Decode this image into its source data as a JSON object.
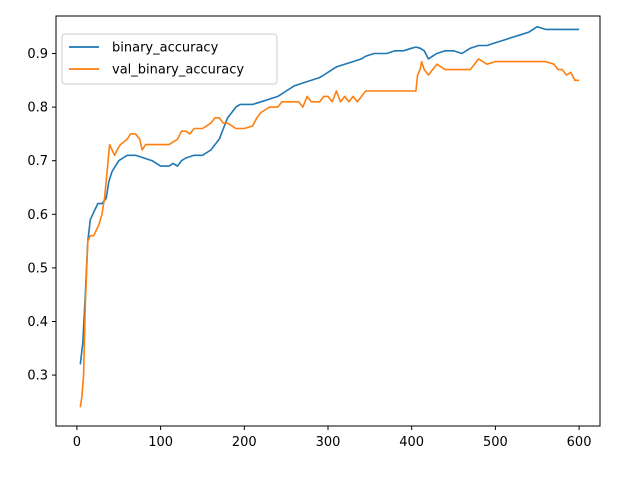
{
  "chart_data": {
    "type": "line",
    "title": "",
    "xlabel": "",
    "ylabel": "",
    "xlim": [
      -25,
      625
    ],
    "ylim": [
      0.205,
      0.97
    ],
    "xticks": [
      0,
      100,
      200,
      300,
      400,
      500,
      600
    ],
    "yticks": [
      0.3,
      0.4,
      0.5,
      0.6,
      0.7,
      0.8,
      0.9
    ],
    "xtick_labels": [
      "0",
      "100",
      "200",
      "300",
      "400",
      "500",
      "600"
    ],
    "ytick_labels": [
      "0.3",
      "0.4",
      "0.5",
      "0.6",
      "0.7",
      "0.8",
      "0.9"
    ],
    "grid": false,
    "legend_position": "top-left",
    "series": [
      {
        "name": "binary_accuracy",
        "color": "#1f77b4",
        "points": [
          [
            4,
            0.32
          ],
          [
            7,
            0.36
          ],
          [
            10,
            0.45
          ],
          [
            13,
            0.55
          ],
          [
            16,
            0.59
          ],
          [
            19,
            0.6
          ],
          [
            22,
            0.61
          ],
          [
            25,
            0.62
          ],
          [
            30,
            0.62
          ],
          [
            35,
            0.63
          ],
          [
            38,
            0.66
          ],
          [
            42,
            0.68
          ],
          [
            46,
            0.69
          ],
          [
            50,
            0.7
          ],
          [
            55,
            0.705
          ],
          [
            60,
            0.71
          ],
          [
            70,
            0.71
          ],
          [
            80,
            0.705
          ],
          [
            90,
            0.7
          ],
          [
            95,
            0.695
          ],
          [
            100,
            0.69
          ],
          [
            110,
            0.69
          ],
          [
            115,
            0.695
          ],
          [
            120,
            0.69
          ],
          [
            125,
            0.7
          ],
          [
            130,
            0.705
          ],
          [
            140,
            0.71
          ],
          [
            150,
            0.71
          ],
          [
            160,
            0.72
          ],
          [
            170,
            0.74
          ],
          [
            175,
            0.76
          ],
          [
            180,
            0.78
          ],
          [
            185,
            0.79
          ],
          [
            190,
            0.8
          ],
          [
            195,
            0.805
          ],
          [
            210,
            0.805
          ],
          [
            220,
            0.81
          ],
          [
            230,
            0.815
          ],
          [
            240,
            0.82
          ],
          [
            250,
            0.83
          ],
          [
            260,
            0.84
          ],
          [
            270,
            0.845
          ],
          [
            280,
            0.85
          ],
          [
            290,
            0.855
          ],
          [
            295,
            0.86
          ],
          [
            300,
            0.865
          ],
          [
            305,
            0.87
          ],
          [
            310,
            0.875
          ],
          [
            320,
            0.88
          ],
          [
            330,
            0.885
          ],
          [
            340,
            0.89
          ],
          [
            345,
            0.895
          ],
          [
            355,
            0.9
          ],
          [
            370,
            0.9
          ],
          [
            380,
            0.905
          ],
          [
            390,
            0.905
          ],
          [
            400,
            0.91
          ],
          [
            405,
            0.912
          ],
          [
            410,
            0.91
          ],
          [
            415,
            0.905
          ],
          [
            420,
            0.89
          ],
          [
            425,
            0.895
          ],
          [
            430,
            0.9
          ],
          [
            440,
            0.905
          ],
          [
            450,
            0.905
          ],
          [
            460,
            0.9
          ],
          [
            470,
            0.91
          ],
          [
            480,
            0.915
          ],
          [
            490,
            0.915
          ],
          [
            500,
            0.92
          ],
          [
            510,
            0.925
          ],
          [
            520,
            0.93
          ],
          [
            530,
            0.935
          ],
          [
            540,
            0.94
          ],
          [
            545,
            0.945
          ],
          [
            550,
            0.95
          ],
          [
            560,
            0.945
          ],
          [
            570,
            0.945
          ],
          [
            580,
            0.945
          ],
          [
            590,
            0.945
          ],
          [
            600,
            0.945
          ]
        ]
      },
      {
        "name": "val_binary_accuracy",
        "color": "#ff7f0e",
        "points": [
          [
            4,
            0.24
          ],
          [
            6,
            0.26
          ],
          [
            8,
            0.3
          ],
          [
            10,
            0.43
          ],
          [
            13,
            0.55
          ],
          [
            16,
            0.56
          ],
          [
            20,
            0.56
          ],
          [
            23,
            0.57
          ],
          [
            26,
            0.58
          ],
          [
            30,
            0.6
          ],
          [
            33,
            0.63
          ],
          [
            36,
            0.68
          ],
          [
            39,
            0.73
          ],
          [
            42,
            0.72
          ],
          [
            45,
            0.71
          ],
          [
            48,
            0.72
          ],
          [
            52,
            0.73
          ],
          [
            56,
            0.735
          ],
          [
            60,
            0.74
          ],
          [
            64,
            0.75
          ],
          [
            70,
            0.75
          ],
          [
            75,
            0.74
          ],
          [
            78,
            0.72
          ],
          [
            82,
            0.73
          ],
          [
            90,
            0.73
          ],
          [
            100,
            0.73
          ],
          [
            110,
            0.73
          ],
          [
            120,
            0.74
          ],
          [
            125,
            0.755
          ],
          [
            130,
            0.755
          ],
          [
            135,
            0.75
          ],
          [
            140,
            0.76
          ],
          [
            150,
            0.76
          ],
          [
            160,
            0.77
          ],
          [
            165,
            0.78
          ],
          [
            170,
            0.78
          ],
          [
            175,
            0.77
          ],
          [
            180,
            0.77
          ],
          [
            190,
            0.76
          ],
          [
            200,
            0.76
          ],
          [
            210,
            0.765
          ],
          [
            215,
            0.78
          ],
          [
            220,
            0.79
          ],
          [
            230,
            0.8
          ],
          [
            240,
            0.8
          ],
          [
            245,
            0.81
          ],
          [
            255,
            0.81
          ],
          [
            265,
            0.81
          ],
          [
            270,
            0.8
          ],
          [
            275,
            0.82
          ],
          [
            280,
            0.81
          ],
          [
            290,
            0.81
          ],
          [
            295,
            0.82
          ],
          [
            300,
            0.82
          ],
          [
            305,
            0.81
          ],
          [
            310,
            0.83
          ],
          [
            315,
            0.81
          ],
          [
            320,
            0.82
          ],
          [
            325,
            0.81
          ],
          [
            330,
            0.82
          ],
          [
            335,
            0.81
          ],
          [
            340,
            0.82
          ],
          [
            345,
            0.83
          ],
          [
            355,
            0.83
          ],
          [
            365,
            0.83
          ],
          [
            375,
            0.83
          ],
          [
            385,
            0.83
          ],
          [
            395,
            0.83
          ],
          [
            405,
            0.83
          ],
          [
            407,
            0.86
          ],
          [
            410,
            0.87
          ],
          [
            412,
            0.885
          ],
          [
            415,
            0.87
          ],
          [
            420,
            0.86
          ],
          [
            425,
            0.87
          ],
          [
            430,
            0.88
          ],
          [
            440,
            0.87
          ],
          [
            450,
            0.87
          ],
          [
            460,
            0.87
          ],
          [
            470,
            0.87
          ],
          [
            475,
            0.88
          ],
          [
            480,
            0.89
          ],
          [
            490,
            0.88
          ],
          [
            500,
            0.885
          ],
          [
            520,
            0.885
          ],
          [
            540,
            0.885
          ],
          [
            560,
            0.885
          ],
          [
            570,
            0.88
          ],
          [
            575,
            0.87
          ],
          [
            580,
            0.87
          ],
          [
            585,
            0.86
          ],
          [
            590,
            0.865
          ],
          [
            595,
            0.85
          ],
          [
            600,
            0.85
          ]
        ]
      }
    ]
  }
}
